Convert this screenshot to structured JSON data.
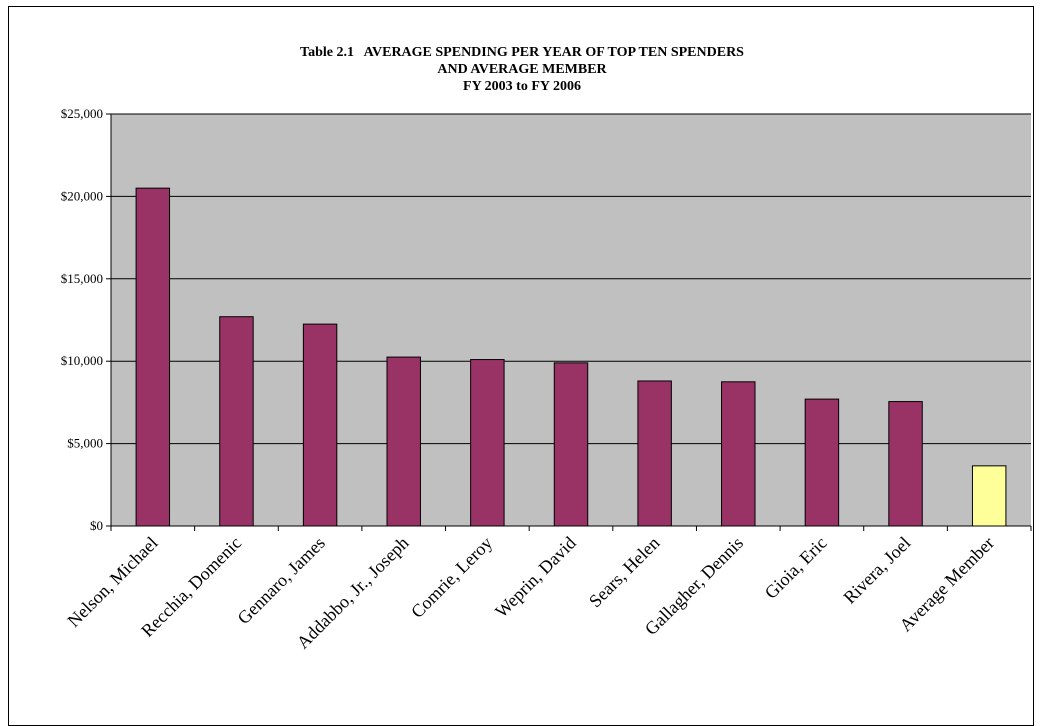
{
  "chart_data": {
    "type": "bar",
    "title_lines": [
      "Table 2.1   AVERAGE SPENDING PER YEAR OF TOP TEN SPENDERS",
      "AND AVERAGE MEMBER",
      "FY 2003 to FY 2006"
    ],
    "categories": [
      "Nelson, Michael",
      "Recchia, Domenic",
      "Gennaro, James",
      "Addabbo, Jr., Joseph",
      "Comrie, Leroy",
      "Weprin, David",
      "Sears, Helen",
      "Gallagher, Dennis",
      "Gioia, Eric",
      "Rivera, Joel",
      "Average Member"
    ],
    "values": [
      20500,
      12700,
      12250,
      10250,
      10100,
      9900,
      8800,
      8750,
      7700,
      7550,
      3650
    ],
    "ylim": [
      0,
      25000
    ],
    "yticks": [
      0,
      5000,
      10000,
      15000,
      20000,
      25000
    ],
    "ytick_labels": [
      "$0",
      "$5,000",
      "$10,000",
      "$15,000",
      "$20,000",
      "$25,000"
    ],
    "xlabel": "",
    "ylabel": "",
    "grid": true,
    "colors": {
      "bar": "#993366",
      "highlight_bar": "#ffff99",
      "plot_background": "#c0c0c0",
      "gridline": "#000000"
    }
  }
}
